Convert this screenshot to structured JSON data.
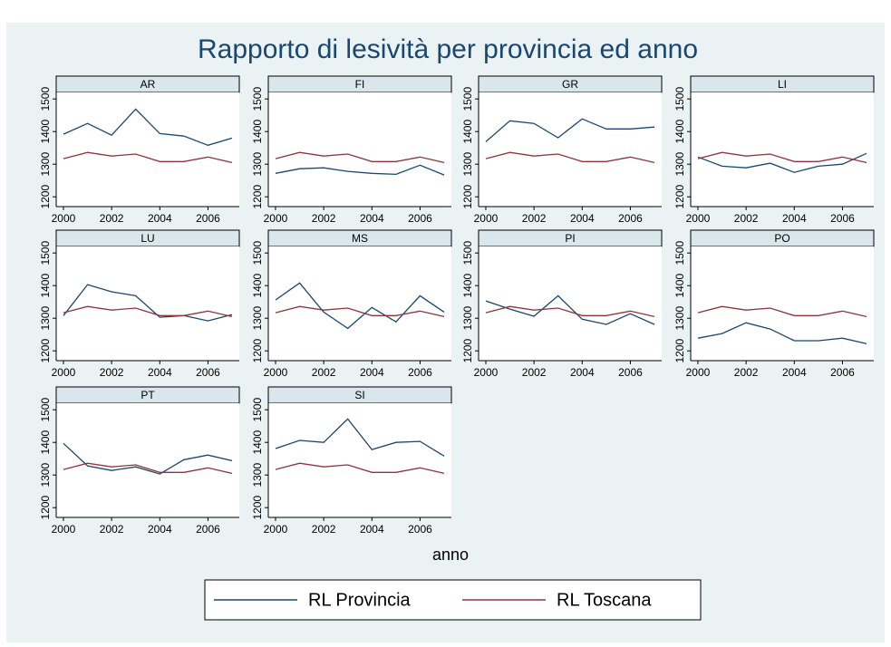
{
  "title": "Rapporto di lesività per provincia ed anno",
  "xlabel": "anno",
  "legend": [
    {
      "name": "RL Provincia",
      "color": "#1a476f"
    },
    {
      "name": "RL Toscana",
      "color": "#90353b"
    }
  ],
  "chart_data": [
    {
      "type": "line",
      "panel": "AR",
      "x": [
        2000,
        2001,
        2002,
        2003,
        2004,
        2005,
        2006,
        2007
      ],
      "series": [
        {
          "values": [
            1392,
            1425,
            1389,
            1469,
            1394,
            1386,
            1358,
            1380
          ]
        },
        {
          "values": [
            1317,
            1336,
            1325,
            1331,
            1308,
            1308,
            1322,
            1305
          ]
        }
      ],
      "xlim": [
        1999.7,
        2007.3
      ],
      "xticks": [
        2000,
        2002,
        2004,
        2006
      ],
      "ylim": [
        1170,
        1520
      ],
      "yticks": [
        1200,
        1300,
        1400,
        1500
      ]
    },
    {
      "type": "line",
      "panel": "FI",
      "x": [
        2000,
        2001,
        2002,
        2003,
        2004,
        2005,
        2006,
        2007
      ],
      "series": [
        {
          "values": [
            1272,
            1286,
            1289,
            1278,
            1272,
            1269,
            1297,
            1267
          ]
        },
        {
          "values": [
            1317,
            1336,
            1325,
            1331,
            1308,
            1308,
            1322,
            1305
          ]
        }
      ],
      "xlim": [
        1999.7,
        2007.3
      ],
      "xticks": [
        2000,
        2002,
        2004,
        2006
      ],
      "ylim": [
        1170,
        1520
      ],
      "yticks": [
        1200,
        1300,
        1400,
        1500
      ]
    },
    {
      "type": "line",
      "panel": "GR",
      "x": [
        2000,
        2001,
        2002,
        2003,
        2004,
        2005,
        2006,
        2007
      ],
      "series": [
        {
          "values": [
            1369,
            1433,
            1425,
            1381,
            1439,
            1408,
            1408,
            1414
          ]
        },
        {
          "values": [
            1317,
            1336,
            1325,
            1331,
            1308,
            1308,
            1322,
            1305
          ]
        }
      ],
      "xlim": [
        1999.7,
        2007.3
      ],
      "xticks": [
        2000,
        2002,
        2004,
        2006
      ],
      "ylim": [
        1170,
        1520
      ],
      "yticks": [
        1200,
        1300,
        1400,
        1500
      ]
    },
    {
      "type": "line",
      "panel": "LI",
      "x": [
        2000,
        2001,
        2002,
        2003,
        2004,
        2005,
        2006,
        2007
      ],
      "series": [
        {
          "values": [
            1322,
            1294,
            1289,
            1303,
            1275,
            1294,
            1300,
            1333
          ]
        },
        {
          "values": [
            1317,
            1336,
            1325,
            1331,
            1308,
            1308,
            1322,
            1305
          ]
        }
      ],
      "xlim": [
        1999.7,
        2007.3
      ],
      "xticks": [
        2000,
        2002,
        2004,
        2006
      ],
      "ylim": [
        1170,
        1520
      ],
      "yticks": [
        1200,
        1300,
        1400,
        1500
      ]
    },
    {
      "type": "line",
      "panel": "LU",
      "x": [
        2000,
        2001,
        2002,
        2003,
        2004,
        2005,
        2006,
        2007
      ],
      "series": [
        {
          "values": [
            1308,
            1403,
            1381,
            1369,
            1303,
            1308,
            1292,
            1311
          ]
        },
        {
          "values": [
            1317,
            1336,
            1325,
            1331,
            1308,
            1308,
            1322,
            1305
          ]
        }
      ],
      "xlim": [
        1999.7,
        2007.3
      ],
      "xticks": [
        2000,
        2002,
        2004,
        2006
      ],
      "ylim": [
        1170,
        1520
      ],
      "yticks": [
        1200,
        1300,
        1400,
        1500
      ]
    },
    {
      "type": "line",
      "panel": "MS",
      "x": [
        2000,
        2001,
        2002,
        2003,
        2004,
        2005,
        2006,
        2007
      ],
      "series": [
        {
          "values": [
            1356,
            1408,
            1319,
            1269,
            1333,
            1289,
            1369,
            1319
          ]
        },
        {
          "values": [
            1317,
            1336,
            1325,
            1331,
            1308,
            1308,
            1322,
            1305
          ]
        }
      ],
      "xlim": [
        1999.7,
        2007.3
      ],
      "xticks": [
        2000,
        2002,
        2004,
        2006
      ],
      "ylim": [
        1170,
        1520
      ],
      "yticks": [
        1200,
        1300,
        1400,
        1500
      ]
    },
    {
      "type": "line",
      "panel": "PI",
      "x": [
        2000,
        2001,
        2002,
        2003,
        2004,
        2005,
        2006,
        2007
      ],
      "series": [
        {
          "values": [
            1353,
            1328,
            1306,
            1369,
            1297,
            1281,
            1314,
            1281
          ]
        },
        {
          "values": [
            1317,
            1336,
            1325,
            1331,
            1308,
            1308,
            1322,
            1305
          ]
        }
      ],
      "xlim": [
        1999.7,
        2007.3
      ],
      "xticks": [
        2000,
        2002,
        2004,
        2006
      ],
      "ylim": [
        1170,
        1520
      ],
      "yticks": [
        1200,
        1300,
        1400,
        1500
      ]
    },
    {
      "type": "line",
      "panel": "PO",
      "x": [
        2000,
        2001,
        2002,
        2003,
        2004,
        2005,
        2006,
        2007
      ],
      "series": [
        {
          "values": [
            1239,
            1253,
            1286,
            1267,
            1231,
            1231,
            1239,
            1222
          ]
        },
        {
          "values": [
            1317,
            1336,
            1325,
            1331,
            1308,
            1308,
            1322,
            1305
          ]
        }
      ],
      "xlim": [
        1999.7,
        2007.3
      ],
      "xticks": [
        2000,
        2002,
        2004,
        2006
      ],
      "ylim": [
        1170,
        1520
      ],
      "yticks": [
        1200,
        1300,
        1400,
        1500
      ]
    },
    {
      "type": "line",
      "panel": "PT",
      "x": [
        2000,
        2001,
        2002,
        2003,
        2004,
        2005,
        2006,
        2007
      ],
      "series": [
        {
          "values": [
            1397,
            1328,
            1314,
            1325,
            1303,
            1347,
            1361,
            1344
          ]
        },
        {
          "values": [
            1317,
            1336,
            1325,
            1331,
            1308,
            1308,
            1322,
            1305
          ]
        }
      ],
      "xlim": [
        1999.7,
        2007.3
      ],
      "xticks": [
        2000,
        2002,
        2004,
        2006
      ],
      "ylim": [
        1170,
        1520
      ],
      "yticks": [
        1200,
        1300,
        1400,
        1500
      ]
    },
    {
      "type": "line",
      "panel": "SI",
      "x": [
        2000,
        2001,
        2002,
        2003,
        2004,
        2005,
        2006,
        2007
      ],
      "series": [
        {
          "values": [
            1381,
            1406,
            1400,
            1472,
            1378,
            1400,
            1403,
            1358
          ]
        },
        {
          "values": [
            1317,
            1336,
            1325,
            1331,
            1308,
            1308,
            1322,
            1305
          ]
        }
      ],
      "xlim": [
        1999.7,
        2007.3
      ],
      "xticks": [
        2000,
        2002,
        2004,
        2006
      ],
      "ylim": [
        1170,
        1520
      ],
      "yticks": [
        1200,
        1300,
        1400,
        1500
      ]
    }
  ]
}
